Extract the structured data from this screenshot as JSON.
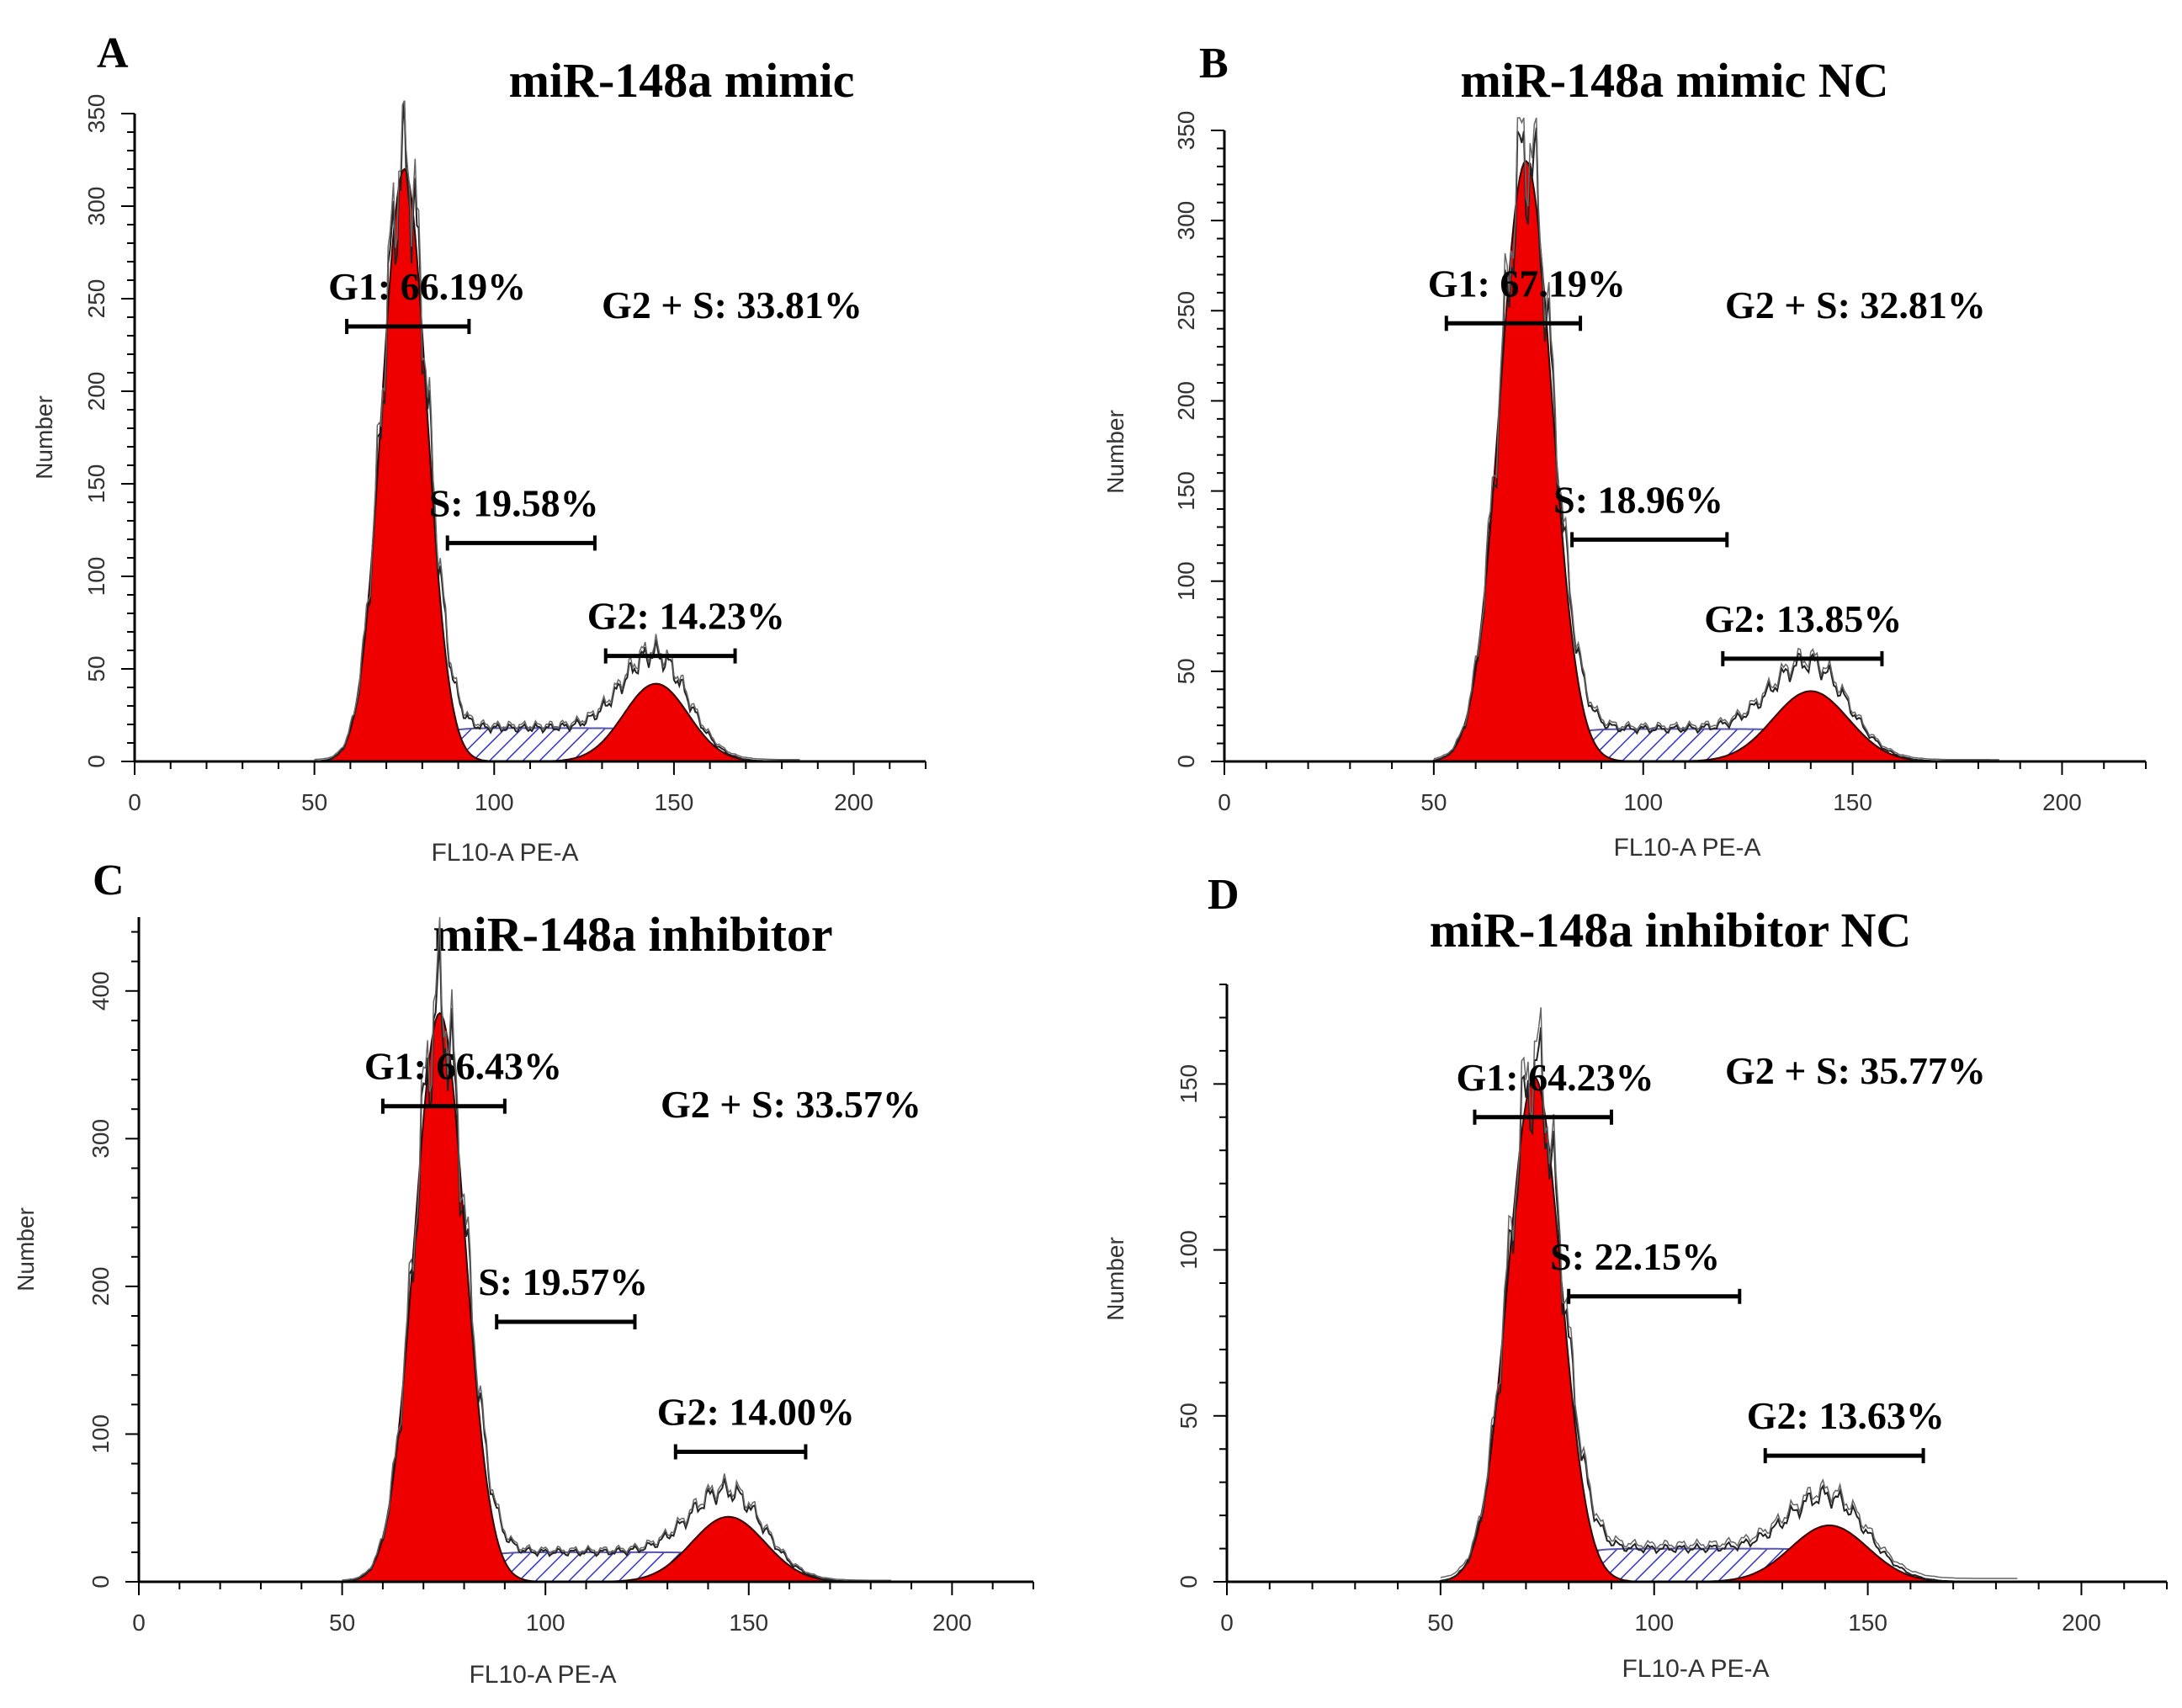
{
  "chart_data": [
    {
      "type": "area",
      "panel_letter": "A",
      "title": "miR-148a mimic",
      "xlabel": "FL10-A PE-A",
      "ylabel": "Number",
      "xlim": [
        0,
        220
      ],
      "ylim": [
        0,
        350
      ],
      "x_ticks": [
        "0",
        "50",
        "100",
        "150",
        "200"
      ],
      "y_ticks": [
        "0",
        "50",
        "100",
        "150",
        "200",
        "250",
        "300",
        "350"
      ],
      "peaks": {
        "g1_center": 75,
        "g1_height": 320,
        "g2_center": 145,
        "g2_height": 42,
        "s_level": 18
      },
      "phases": [
        {
          "name": "G1",
          "label": "G1: 66.19%",
          "value": 66.19,
          "gate": [
            59,
            93
          ],
          "gate_y": 235
        },
        {
          "name": "S",
          "label": "S: 19.58%",
          "value": 19.58,
          "gate": [
            87,
            128
          ],
          "gate_y": 118
        },
        {
          "name": "G2",
          "label": "G2: 14.23%",
          "value": 14.23,
          "gate": [
            131,
            167
          ],
          "gate_y": 57
        }
      ],
      "annotation": "G2 + S: 33.81%",
      "legend": []
    },
    {
      "type": "area",
      "panel_letter": "B",
      "title": "miR-148a mimic NC",
      "xlabel": "FL10-A PE-A",
      "ylabel": "Number",
      "xlim": [
        0,
        220
      ],
      "ylim": [
        0,
        350
      ],
      "x_ticks": [
        "0",
        "50",
        "100",
        "150",
        "200"
      ],
      "y_ticks": [
        "0",
        "50",
        "100",
        "150",
        "200",
        "250",
        "300",
        "350"
      ],
      "peaks": {
        "g1_center": 72,
        "g1_height": 333,
        "g2_center": 140,
        "g2_height": 39,
        "s_level": 18
      },
      "phases": [
        {
          "name": "G1",
          "label": "G1: 67.19%",
          "value": 67.19,
          "gate": [
            53,
            85
          ],
          "gate_y": 243
        },
        {
          "name": "S",
          "label": "S: 18.96%",
          "value": 18.96,
          "gate": [
            83,
            120
          ],
          "gate_y": 123
        },
        {
          "name": "G2",
          "label": "G2: 13.85%",
          "value": 13.85,
          "gate": [
            119,
            157
          ],
          "gate_y": 57
        }
      ],
      "annotation": "G2 + S: 32.81%",
      "legend": []
    },
    {
      "type": "area",
      "panel_letter": "C",
      "title": "miR-148a inhibitor",
      "xlabel": "FL10-A PE-A",
      "ylabel": "Number",
      "xlim": [
        0,
        220
      ],
      "ylim": [
        0,
        450
      ],
      "x_ticks": [
        "0",
        "50",
        "100",
        "150",
        "200"
      ],
      "y_ticks": [
        "0",
        "100",
        "200",
        "300",
        "400"
      ],
      "peaks": {
        "g1_center": 74,
        "g1_height": 385,
        "g2_center": 145,
        "g2_height": 44,
        "s_level": 20
      },
      "phases": [
        {
          "name": "G1",
          "label": "G1: 66.43%",
          "value": 66.43,
          "gate": [
            60,
            90
          ],
          "gate_y": 322
        },
        {
          "name": "S",
          "label": "S: 19.57%",
          "value": 19.57,
          "gate": [
            88,
            122
          ],
          "gate_y": 176
        },
        {
          "name": "G2",
          "label": "G2: 14.00%",
          "value": 14.0,
          "gate": [
            132,
            164
          ],
          "gate_y": 88
        }
      ],
      "annotation": "G2 + S: 33.57%",
      "legend": []
    },
    {
      "type": "area",
      "panel_letter": "D",
      "title": "miR-148a inhibitor NC",
      "xlabel": "FL10-A PE-A",
      "ylabel": "Number",
      "xlim": [
        0,
        220
      ],
      "ylim": [
        0,
        180
      ],
      "x_ticks": [
        "0",
        "50",
        "100",
        "150",
        "200"
      ],
      "y_ticks": [
        "0",
        "50",
        "100",
        "150"
      ],
      "peaks": {
        "g1_center": 72,
        "g1_height": 152,
        "g2_center": 141,
        "g2_height": 17,
        "s_level": 10
      },
      "phases": [
        {
          "name": "G1",
          "label": "G1: 64.23%",
          "value": 64.23,
          "gate": [
            58,
            90
          ],
          "gate_y": 140
        },
        {
          "name": "S",
          "label": "S: 22.15%",
          "value": 22.15,
          "gate": [
            80,
            120
          ],
          "gate_y": 86
        },
        {
          "name": "G2",
          "label": "G2: 13.63%",
          "value": 13.63,
          "gate": [
            126,
            163
          ],
          "gate_y": 38
        }
      ],
      "annotation": "G2 + S: 35.77%",
      "legend": []
    }
  ]
}
